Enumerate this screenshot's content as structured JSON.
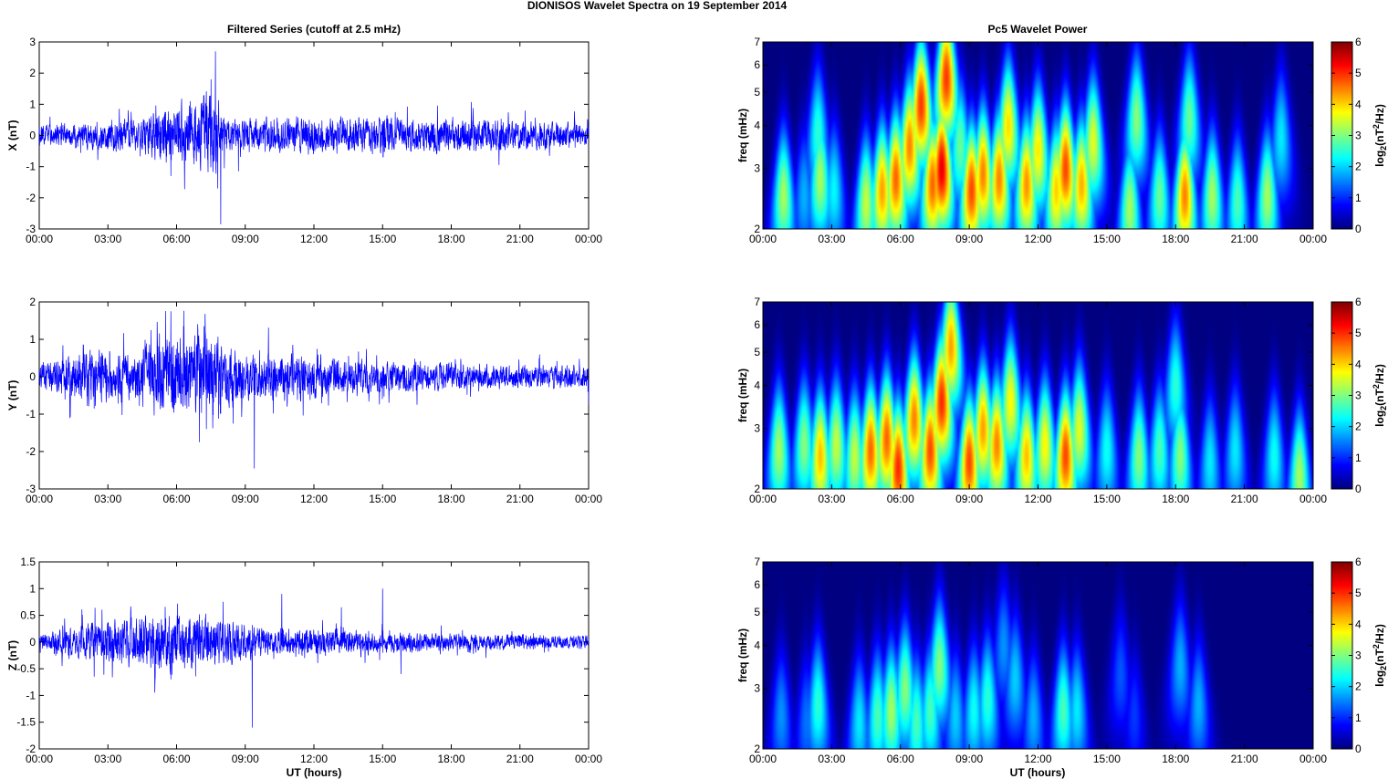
{
  "figure": {
    "title": "DIONISOS Wavelet Spectra on 19 September 2014",
    "left_title": "Filtered Series (cutoff at 2.5 mHz)",
    "right_title": "Pc5 Wavelet Power",
    "xlabel": "UT (hours)"
  },
  "colors": {
    "line": "#0000ff",
    "colormap": "jet",
    "background": "#00008f"
  },
  "chart_data": [
    {
      "type": "line",
      "name": "X",
      "ylabel": "X (nT)",
      "xlim_hours": [
        0,
        24
      ],
      "ylim": [
        -3,
        3
      ],
      "yticks": [
        "3",
        "2",
        "1",
        "0",
        "-1",
        "-2",
        "-3"
      ],
      "xticks": [
        "00:00",
        "03:00",
        "06:00",
        "09:00",
        "12:00",
        "15:00",
        "18:00",
        "21:00",
        "00:00"
      ],
      "baseline_amplitude": 0.15,
      "envelope": [
        {
          "t": 0.0,
          "amp": 0.25
        },
        {
          "t": 2.2,
          "amp": 0.35
        },
        {
          "t": 4.5,
          "amp": 0.4
        },
        {
          "t": 5.7,
          "amp": 0.9
        },
        {
          "t": 6.7,
          "amp": 0.8
        },
        {
          "t": 7.5,
          "amp": 1.3
        },
        {
          "t": 8.2,
          "amp": 0.4
        },
        {
          "t": 10.0,
          "amp": 0.45
        },
        {
          "t": 13.0,
          "amp": 0.5
        },
        {
          "t": 16.0,
          "amp": 0.45
        },
        {
          "t": 19.0,
          "amp": 0.45
        },
        {
          "t": 22.5,
          "amp": 0.35
        },
        {
          "t": 24.0,
          "amp": 0.3
        }
      ],
      "spikes": [
        {
          "t": 7.5,
          "y": 1.8
        },
        {
          "t": 7.7,
          "y": 2.7
        },
        {
          "t": 7.93,
          "y": -2.85
        },
        {
          "t": 7.8,
          "y": -1.7
        },
        {
          "t": 5.75,
          "y": -1.3
        },
        {
          "t": 7.2,
          "y": 1.3
        },
        {
          "t": 6.6,
          "y": 1.1
        },
        {
          "t": 8.7,
          "y": -1.15
        }
      ]
    },
    {
      "type": "line",
      "name": "Y",
      "ylabel": "Y (nT)",
      "xlim_hours": [
        0,
        24
      ],
      "ylim": [
        -3,
        2
      ],
      "yticks": [
        "2",
        "1",
        "0",
        "-1",
        "-2",
        "-3"
      ],
      "xticks": [
        "00:00",
        "03:00",
        "06:00",
        "09:00",
        "12:00",
        "15:00",
        "18:00",
        "21:00",
        "00:00"
      ],
      "baseline_amplitude": 0.15,
      "envelope": [
        {
          "t": 0.0,
          "amp": 0.3
        },
        {
          "t": 2.3,
          "amp": 0.6
        },
        {
          "t": 4.0,
          "amp": 0.5
        },
        {
          "t": 5.5,
          "amp": 1.0
        },
        {
          "t": 6.5,
          "amp": 0.8
        },
        {
          "t": 7.4,
          "amp": 0.9
        },
        {
          "t": 9.0,
          "amp": 0.5
        },
        {
          "t": 11.0,
          "amp": 0.5
        },
        {
          "t": 14.0,
          "amp": 0.35
        },
        {
          "t": 17.0,
          "amp": 0.3
        },
        {
          "t": 20.0,
          "amp": 0.25
        },
        {
          "t": 24.0,
          "amp": 0.25
        }
      ],
      "spikes": [
        {
          "t": 5.75,
          "y": 1.75
        },
        {
          "t": 9.4,
          "y": -2.45
        },
        {
          "t": 7.3,
          "y": -1.4
        },
        {
          "t": 7.0,
          "y": -1.75
        },
        {
          "t": 6.3,
          "y": 1.35
        },
        {
          "t": 7.2,
          "y": 1.35
        },
        {
          "t": 2.4,
          "y": -0.85
        },
        {
          "t": 24.0,
          "y": -0.75
        }
      ]
    },
    {
      "type": "line",
      "name": "Z",
      "ylabel": "Z (nT)",
      "xlim_hours": [
        0,
        24
      ],
      "ylim": [
        -2,
        1.5
      ],
      "yticks": [
        "1.5",
        "1",
        "0.5",
        "0",
        "-0.5",
        "-1",
        "-1.5",
        "-2"
      ],
      "xticks": [
        "00:00",
        "03:00",
        "06:00",
        "09:00",
        "12:00",
        "15:00",
        "18:00",
        "21:00",
        "00:00"
      ],
      "baseline_amplitude": 0.08,
      "envelope": [
        {
          "t": 0.0,
          "amp": 0.1
        },
        {
          "t": 2.4,
          "amp": 0.3
        },
        {
          "t": 5.5,
          "amp": 0.45
        },
        {
          "t": 7.5,
          "amp": 0.4
        },
        {
          "t": 10.0,
          "amp": 0.2
        },
        {
          "t": 13.0,
          "amp": 0.2
        },
        {
          "t": 16.0,
          "amp": 0.15
        },
        {
          "t": 20.0,
          "amp": 0.12
        },
        {
          "t": 24.0,
          "amp": 0.1
        }
      ],
      "spikes": [
        {
          "t": 9.3,
          "y": -1.6
        },
        {
          "t": 15.0,
          "y": 1.0
        },
        {
          "t": 13.2,
          "y": 0.65
        },
        {
          "t": 6.05,
          "y": 0.72
        },
        {
          "t": 10.6,
          "y": 0.9
        },
        {
          "t": 5.75,
          "y": -0.7
        },
        {
          "t": 15.8,
          "y": -0.6
        },
        {
          "t": 2.4,
          "y": -0.65
        }
      ]
    },
    {
      "type": "heatmap",
      "name": "X power",
      "ylabel": "freq (mHz)",
      "yscale": "log",
      "ylim": [
        2,
        7
      ],
      "yticks": [
        "7",
        "6",
        "5",
        "4",
        "3",
        "2"
      ],
      "xlim_hours": [
        0,
        24
      ],
      "xticks": [
        "00:00",
        "03:00",
        "06:00",
        "09:00",
        "12:00",
        "15:00",
        "18:00",
        "21:00",
        "00:00"
      ],
      "clim": [
        0,
        6
      ],
      "colorbar_ticks": [
        "6",
        "5",
        "4",
        "3",
        "2",
        "1",
        "0"
      ],
      "colorbar_label": "log2(nT2/Hz)",
      "blobs": [
        {
          "t": 0.9,
          "f": 2.5,
          "p": 3.6
        },
        {
          "t": 1.8,
          "f": 2.5,
          "p": 2.0
        },
        {
          "t": 2.5,
          "f": 2.8,
          "p": 3.6
        },
        {
          "t": 2.4,
          "f": 3.8,
          "p": 2.8
        },
        {
          "t": 3.1,
          "f": 2.6,
          "p": 2.5
        },
        {
          "t": 4.5,
          "f": 2.4,
          "p": 3.8
        },
        {
          "t": 5.2,
          "f": 2.6,
          "p": 4.8
        },
        {
          "t": 5.8,
          "f": 2.8,
          "p": 5.2
        },
        {
          "t": 6.4,
          "f": 3.5,
          "p": 5.0
        },
        {
          "t": 6.9,
          "f": 4.6,
          "p": 5.5
        },
        {
          "t": 7.4,
          "f": 2.7,
          "p": 5.2
        },
        {
          "t": 7.8,
          "f": 3.0,
          "p": 6.0
        },
        {
          "t": 8.0,
          "f": 5.5,
          "p": 5.5
        },
        {
          "t": 8.6,
          "f": 3.5,
          "p": 3.2
        },
        {
          "t": 9.1,
          "f": 2.6,
          "p": 5.4
        },
        {
          "t": 9.6,
          "f": 2.9,
          "p": 5.0
        },
        {
          "t": 10.3,
          "f": 2.8,
          "p": 5.0
        },
        {
          "t": 10.7,
          "f": 4.0,
          "p": 4.4
        },
        {
          "t": 11.5,
          "f": 2.7,
          "p": 4.9
        },
        {
          "t": 12.0,
          "f": 3.4,
          "p": 4.3
        },
        {
          "t": 12.8,
          "f": 2.6,
          "p": 4.5
        },
        {
          "t": 13.2,
          "f": 3.0,
          "p": 5.4
        },
        {
          "t": 13.9,
          "f": 2.7,
          "p": 4.7
        },
        {
          "t": 14.4,
          "f": 3.6,
          "p": 4.0
        },
        {
          "t": 16.0,
          "f": 2.3,
          "p": 3.6
        },
        {
          "t": 16.3,
          "f": 4.2,
          "p": 3.4
        },
        {
          "t": 17.3,
          "f": 2.5,
          "p": 3.2
        },
        {
          "t": 18.4,
          "f": 2.5,
          "p": 5.0
        },
        {
          "t": 18.6,
          "f": 4.2,
          "p": 3.2
        },
        {
          "t": 19.6,
          "f": 2.5,
          "p": 3.6
        },
        {
          "t": 20.7,
          "f": 2.4,
          "p": 3.0
        },
        {
          "t": 22.0,
          "f": 2.5,
          "p": 3.6
        },
        {
          "t": 22.6,
          "f": 3.7,
          "p": 2.4
        }
      ]
    },
    {
      "type": "heatmap",
      "name": "Y power",
      "ylabel": "freq (mHz)",
      "yscale": "log",
      "ylim": [
        2,
        7
      ],
      "yticks": [
        "7",
        "6",
        "5",
        "4",
        "3",
        "2"
      ],
      "xlim_hours": [
        0,
        24
      ],
      "xticks": [
        "00:00",
        "03:00",
        "06:00",
        "09:00",
        "12:00",
        "15:00",
        "18:00",
        "21:00",
        "00:00"
      ],
      "clim": [
        0,
        6
      ],
      "colorbar_ticks": [
        "6",
        "5",
        "4",
        "3",
        "2",
        "1",
        "0"
      ],
      "colorbar_label": "log2(nT2/Hz)",
      "blobs": [
        {
          "t": 0.7,
          "f": 2.6,
          "p": 3.6
        },
        {
          "t": 1.8,
          "f": 2.7,
          "p": 3.4
        },
        {
          "t": 2.5,
          "f": 2.5,
          "p": 4.6
        },
        {
          "t": 3.2,
          "f": 2.7,
          "p": 3.8
        },
        {
          "t": 4.0,
          "f": 2.5,
          "p": 3.8
        },
        {
          "t": 4.7,
          "f": 2.6,
          "p": 5.2
        },
        {
          "t": 5.4,
          "f": 2.8,
          "p": 5.2
        },
        {
          "t": 5.9,
          "f": 2.3,
          "p": 5.6
        },
        {
          "t": 6.6,
          "f": 3.2,
          "p": 5.0
        },
        {
          "t": 7.3,
          "f": 2.6,
          "p": 5.4
        },
        {
          "t": 7.8,
          "f": 3.6,
          "p": 5.6
        },
        {
          "t": 8.2,
          "f": 5.2,
          "p": 4.8
        },
        {
          "t": 9.0,
          "f": 2.4,
          "p": 5.4
        },
        {
          "t": 9.6,
          "f": 3.0,
          "p": 4.8
        },
        {
          "t": 10.2,
          "f": 2.7,
          "p": 5.0
        },
        {
          "t": 10.8,
          "f": 3.6,
          "p": 4.2
        },
        {
          "t": 11.5,
          "f": 2.5,
          "p": 4.6
        },
        {
          "t": 12.3,
          "f": 2.7,
          "p": 4.2
        },
        {
          "t": 13.2,
          "f": 2.5,
          "p": 5.4
        },
        {
          "t": 13.8,
          "f": 3.0,
          "p": 4.0
        },
        {
          "t": 15.0,
          "f": 2.6,
          "p": 2.6
        },
        {
          "t": 16.4,
          "f": 2.5,
          "p": 3.4
        },
        {
          "t": 17.3,
          "f": 2.6,
          "p": 3.0
        },
        {
          "t": 18.2,
          "f": 2.5,
          "p": 3.4
        },
        {
          "t": 18.0,
          "f": 4.0,
          "p": 2.8
        },
        {
          "t": 19.5,
          "f": 2.4,
          "p": 2.4
        },
        {
          "t": 20.6,
          "f": 2.6,
          "p": 2.4
        },
        {
          "t": 22.3,
          "f": 2.5,
          "p": 2.6
        },
        {
          "t": 23.4,
          "f": 2.2,
          "p": 3.6
        }
      ]
    },
    {
      "type": "heatmap",
      "name": "Z power",
      "ylabel": "freq (mHz)",
      "yscale": "log",
      "ylim": [
        2,
        7
      ],
      "yticks": [
        "7",
        "6",
        "5",
        "4",
        "3",
        "2"
      ],
      "xlim_hours": [
        0,
        24
      ],
      "xticks": [
        "00:00",
        "03:00",
        "06:00",
        "09:00",
        "12:00",
        "15:00",
        "18:00",
        "21:00",
        "00:00"
      ],
      "clim": [
        0,
        6
      ],
      "colorbar_ticks": [
        "6",
        "5",
        "4",
        "3",
        "2",
        "1",
        "0"
      ],
      "colorbar_label": "log2(nT2/Hz)",
      "blobs": [
        {
          "t": 0.8,
          "f": 2.5,
          "p": 1.8
        },
        {
          "t": 1.9,
          "f": 2.4,
          "p": 1.6
        },
        {
          "t": 2.4,
          "f": 2.7,
          "p": 2.8
        },
        {
          "t": 4.2,
          "f": 2.4,
          "p": 2.4
        },
        {
          "t": 5.0,
          "f": 2.5,
          "p": 3.0
        },
        {
          "t": 5.6,
          "f": 2.6,
          "p": 3.6
        },
        {
          "t": 6.2,
          "f": 3.0,
          "p": 3.4
        },
        {
          "t": 6.7,
          "f": 2.4,
          "p": 3.0
        },
        {
          "t": 7.3,
          "f": 2.6,
          "p": 3.0
        },
        {
          "t": 7.7,
          "f": 3.5,
          "p": 3.4
        },
        {
          "t": 8.4,
          "f": 2.5,
          "p": 2.2
        },
        {
          "t": 9.2,
          "f": 2.6,
          "p": 2.6
        },
        {
          "t": 9.8,
          "f": 2.8,
          "p": 2.8
        },
        {
          "t": 10.5,
          "f": 4.0,
          "p": 1.8
        },
        {
          "t": 11.0,
          "f": 3.2,
          "p": 2.2
        },
        {
          "t": 11.8,
          "f": 2.5,
          "p": 2.0
        },
        {
          "t": 13.1,
          "f": 2.6,
          "p": 3.0
        },
        {
          "t": 13.7,
          "f": 2.6,
          "p": 2.4
        },
        {
          "t": 15.6,
          "f": 3.3,
          "p": 1.4
        },
        {
          "t": 18.2,
          "f": 3.5,
          "p": 2.0
        },
        {
          "t": 19.0,
          "f": 2.7,
          "p": 2.0
        },
        {
          "t": 16.2,
          "f": 2.5,
          "p": 1.2
        }
      ]
    }
  ]
}
